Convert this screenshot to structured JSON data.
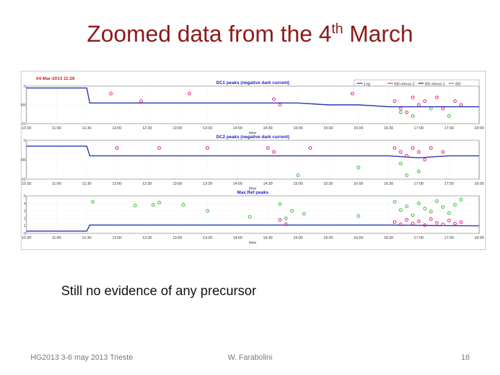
{
  "slide": {
    "title_main": "Zoomed data from the 4",
    "title_sup": "th",
    "title_end": " March",
    "caption": "Still no evidence of any precursor",
    "footer_left": "HG2013 3-6 may 2013 Trieste",
    "footer_center": "W. Farabolini",
    "footer_right": "18"
  },
  "chart_data": [
    {
      "type": "scatter",
      "title": "DC1 peaks (negative dark current)",
      "timestamp": "04-Mar-2013 11:26",
      "xlabel": "time",
      "ylabel": "",
      "x_ticks": [
        "10:30",
        "11:00",
        "11:30",
        "12:00",
        "12:30",
        "13:00",
        "13:30",
        "14:00",
        "14:30",
        "15:00",
        "15:30",
        "16:00",
        "16:30",
        "17:00",
        "17:30",
        "18:00"
      ],
      "y_ticks": [
        "0",
        "-0.005",
        "-0.01"
      ],
      "ylim": [
        -0.01,
        0
      ],
      "legend": [
        "Log",
        "BD-minus-2",
        "BD-minus-1",
        "BD"
      ],
      "legend_position": "top-right",
      "colors": {
        "trace": "#2233aa",
        "bd_minus_2": "#e0208a",
        "bd_minus_1": "#333333",
        "bd": "#33bb33"
      },
      "series": [
        {
          "name": "Log",
          "x": [
            10.5,
            11.0,
            11.5,
            11.55,
            12.0,
            12.5,
            13.0,
            13.5,
            14.0,
            14.5,
            15.0,
            15.5,
            16.0,
            16.5,
            17.0,
            17.5,
            18.0
          ],
          "y": [
            -0.0005,
            -0.0005,
            -0.0005,
            -0.0045,
            -0.0045,
            -0.0045,
            -0.0045,
            -0.0045,
            -0.0045,
            -0.0045,
            -0.0045,
            -0.005,
            -0.005,
            -0.0055,
            -0.0055,
            -0.0055,
            -0.0055
          ]
        },
        {
          "name": "BD-minus-2",
          "x": [
            11.9,
            12.4,
            13.2,
            14.6,
            14.7,
            15.9,
            16.6,
            16.7,
            16.8,
            16.9,
            17.0,
            17.1,
            17.3,
            17.4,
            17.6,
            17.7
          ],
          "y": [
            -0.002,
            -0.004,
            -0.002,
            -0.0035,
            -0.005,
            -0.002,
            -0.004,
            -0.006,
            -0.007,
            -0.003,
            -0.005,
            -0.004,
            -0.003,
            -0.006,
            -0.004,
            -0.005
          ]
        },
        {
          "name": "BD",
          "x": [
            16.7,
            16.9,
            17.2,
            17.5
          ],
          "y": [
            -0.007,
            -0.008,
            -0.006,
            -0.008
          ]
        }
      ]
    },
    {
      "type": "scatter",
      "title": "DC2 peaks (negative dark current)",
      "xlabel": "time",
      "ylabel": "",
      "x_ticks": [
        "10:30",
        "11:00",
        "11:30",
        "12:00",
        "12:30",
        "13:00",
        "13:30",
        "14:00",
        "14:30",
        "15:00",
        "15:30",
        "16:00",
        "16:30",
        "17:00",
        "17:30",
        "18:00"
      ],
      "y_ticks": [
        "0",
        "-0.005",
        "-0.01"
      ],
      "ylim": [
        -0.01,
        0
      ],
      "series": [
        {
          "name": "Log",
          "x": [
            10.5,
            11.5,
            11.55,
            14.5,
            16.5,
            17.0,
            17.5,
            18.0
          ],
          "y": [
            -0.0015,
            -0.0015,
            -0.004,
            -0.004,
            -0.004,
            -0.0045,
            -0.004,
            -0.004
          ]
        },
        {
          "name": "BD-minus-2",
          "x": [
            12.0,
            12.7,
            13.5,
            14.5,
            14.6,
            15.2,
            16.6,
            16.7,
            16.8,
            16.9,
            17.0,
            17.1,
            17.2,
            17.4
          ],
          "y": [
            -0.002,
            -0.002,
            -0.002,
            -0.002,
            -0.003,
            -0.002,
            -0.002,
            -0.003,
            -0.004,
            -0.002,
            -0.003,
            -0.005,
            -0.002,
            -0.003
          ]
        },
        {
          "name": "BD",
          "x": [
            15.0,
            16.0,
            16.7,
            16.8,
            17.0
          ],
          "y": [
            -0.009,
            -0.007,
            -0.006,
            -0.009,
            -0.008
          ]
        }
      ]
    },
    {
      "type": "scatter",
      "title": "Max Ref peaks",
      "xlabel": "time",
      "ylabel": "",
      "x_ticks": [
        "10:30",
        "11:00",
        "11:30",
        "12:00",
        "12:30",
        "13:00",
        "13:30",
        "14:00",
        "14:30",
        "15:00",
        "15:30",
        "16:00",
        "16:30",
        "17:00",
        "17:30",
        "18:00"
      ],
      "y_ticks": [
        "0",
        "1",
        "2",
        "3",
        "4",
        "5"
      ],
      "ylim": [
        0,
        5
      ],
      "series": [
        {
          "name": "Log",
          "x": [
            10.5,
            11.5,
            11.55,
            16.5,
            18.0
          ],
          "y": [
            0.3,
            0.3,
            1.1,
            1.1,
            1.0
          ]
        },
        {
          "name": "BD-minus-2",
          "x": [
            14.7,
            14.8,
            16.6,
            16.7,
            16.8,
            16.9,
            17.0,
            17.1,
            17.2,
            17.3,
            17.4,
            17.5,
            17.6,
            17.7
          ],
          "y": [
            1.8,
            1.2,
            1.5,
            1.2,
            1.8,
            1.3,
            1.6,
            1.1,
            1.9,
            1.4,
            1.2,
            1.7,
            1.3,
            1.5
          ]
        },
        {
          "name": "BD",
          "x": [
            11.6,
            12.3,
            12.6,
            12.7,
            13.1,
            13.5,
            14.2,
            14.7,
            14.8,
            14.9,
            15.1,
            16.0,
            16.6,
            16.7,
            16.8,
            16.9,
            17.0,
            17.1,
            17.2,
            17.3,
            17.4,
            17.5,
            17.6,
            17.7
          ],
          "y": [
            4.2,
            3.7,
            3.8,
            4.1,
            3.8,
            3.0,
            2.2,
            3.9,
            2.0,
            3.0,
            2.6,
            2.3,
            4.2,
            3.1,
            3.6,
            2.4,
            4.0,
            3.3,
            2.9,
            4.3,
            3.5,
            2.7,
            3.8,
            4.5
          ]
        }
      ]
    }
  ]
}
